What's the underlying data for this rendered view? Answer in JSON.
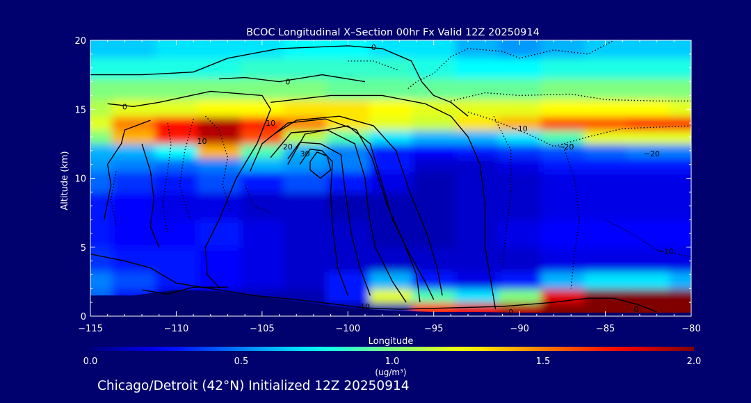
{
  "chart_data": {
    "type": "heatmap",
    "title": "BCOC Longitudinal X–Section 00hr  Fx Valid 12Z 20250914",
    "xlabel": "Longitude",
    "ylabel": "Altitude (km)",
    "xlim": [
      -115,
      -80
    ],
    "ylim": [
      0,
      20
    ],
    "x_ticks": [
      -115,
      -110,
      -105,
      -100,
      -95,
      -90,
      -85,
      -80
    ],
    "x_tick_labels": [
      "−115",
      "−110",
      "−105",
      "−100",
      "−95",
      "−90",
      "−85",
      "−80"
    ],
    "y_ticks": [
      0,
      5,
      10,
      15,
      20
    ],
    "y_tick_labels": [
      "0",
      "5",
      "10",
      "15",
      "20"
    ],
    "colorbar": {
      "min": 0.0,
      "max": 2.0,
      "ticks": [
        0.0,
        0.5,
        1.0,
        1.5,
        2.0
      ],
      "tick_labels": [
        "0.0",
        "0.5",
        "1.0",
        "1.5",
        "2.0"
      ],
      "units_label": "(ug/m³)",
      "colormap": "jet"
    },
    "footer": "Chicago/Detroit (42°N) Initialized 12Z 20250914",
    "grid": false,
    "field": {
      "lon": [
        -115,
        -112.5,
        -110,
        -107.5,
        -105,
        -102.5,
        -100,
        -97.5,
        -95,
        -92.5,
        -90,
        -87.5,
        -85,
        -82.5,
        -80
      ],
      "alt": [
        0.5,
        1.5,
        2.5,
        4,
        6,
        8,
        10,
        11,
        12,
        13,
        14,
        15,
        16.5,
        18,
        19.5
      ],
      "bcoc": [
        [
          0.05,
          0.05,
          0.05,
          0.05,
          0.05,
          0.05,
          0.05,
          0.1,
          1.7,
          1.8,
          1.9,
          2.0,
          2.0,
          2.0,
          2.0
        ],
        [
          0.45,
          0.3,
          0.15,
          0.1,
          0.1,
          0.1,
          0.3,
          1.2,
          0.9,
          0.7,
          1.0,
          1.8,
          2.0,
          2.0,
          2.0
        ],
        [
          0.5,
          0.4,
          0.3,
          0.25,
          0.2,
          0.15,
          0.3,
          0.6,
          0.3,
          0.2,
          0.3,
          0.6,
          0.7,
          0.7,
          0.6
        ],
        [
          0.35,
          0.3,
          0.3,
          0.25,
          0.2,
          0.15,
          0.15,
          0.15,
          0.15,
          0.15,
          0.15,
          0.2,
          0.2,
          0.2,
          0.2
        ],
        [
          0.3,
          0.25,
          0.25,
          0.3,
          0.2,
          0.15,
          0.15,
          0.1,
          0.1,
          0.15,
          0.2,
          0.25,
          0.25,
          0.25,
          0.25
        ],
        [
          0.3,
          0.25,
          0.2,
          0.2,
          0.15,
          0.15,
          0.1,
          0.1,
          0.1,
          0.15,
          0.15,
          0.2,
          0.2,
          0.2,
          0.2
        ],
        [
          0.45,
          0.35,
          0.3,
          0.4,
          0.3,
          0.4,
          0.3,
          0.2,
          0.1,
          0.15,
          0.15,
          0.2,
          0.2,
          0.2,
          0.2
        ],
        [
          0.55,
          0.5,
          0.45,
          0.5,
          0.6,
          0.55,
          0.5,
          0.3,
          0.15,
          0.15,
          0.2,
          0.3,
          0.3,
          0.3,
          0.3
        ],
        [
          0.6,
          0.6,
          0.75,
          1.4,
          0.9,
          0.6,
          0.5,
          0.3,
          0.25,
          0.3,
          0.35,
          0.4,
          0.45,
          0.5,
          0.5
        ],
        [
          1.0,
          1.4,
          1.7,
          1.9,
          1.6,
          1.1,
          0.9,
          0.7,
          0.6,
          0.6,
          0.7,
          0.9,
          1.2,
          1.2,
          1.2
        ],
        [
          1.2,
          1.5,
          1.75,
          1.9,
          1.7,
          1.5,
          1.3,
          1.2,
          1.15,
          1.3,
          1.4,
          1.6,
          1.6,
          1.7,
          1.7
        ],
        [
          1.1,
          1.2,
          1.2,
          1.25,
          1.25,
          1.3,
          1.3,
          1.25,
          1.2,
          1.2,
          1.2,
          1.25,
          1.25,
          1.25,
          1.2
        ],
        [
          1.0,
          1.0,
          1.0,
          1.0,
          1.0,
          1.0,
          0.95,
          0.95,
          0.95,
          0.95,
          0.95,
          1.0,
          1.0,
          1.0,
          1.0
        ],
        [
          0.8,
          0.8,
          0.8,
          0.8,
          0.85,
          0.85,
          0.85,
          0.85,
          0.8,
          0.75,
          0.75,
          0.8,
          0.8,
          0.8,
          0.8
        ],
        [
          0.65,
          0.65,
          0.7,
          0.7,
          0.7,
          0.75,
          0.75,
          0.7,
          0.7,
          0.6,
          0.55,
          0.6,
          0.65,
          0.65,
          0.65
        ]
      ]
    },
    "contour_labels": [
      {
        "text": "0",
        "lon": -98.5,
        "alt": 19.5
      },
      {
        "text": "0",
        "lon": -103.5,
        "alt": 17.0
      },
      {
        "text": "0",
        "lon": -113.0,
        "alt": 15.2
      },
      {
        "text": "10",
        "lon": -104.5,
        "alt": 14.0
      },
      {
        "text": "20",
        "lon": -103.5,
        "alt": 12.3
      },
      {
        "text": "30",
        "lon": -102.5,
        "alt": 11.8
      },
      {
        "text": "10",
        "lon": -108.5,
        "alt": 12.7
      },
      {
        "text": "−10",
        "lon": -90.0,
        "alt": 13.6
      },
      {
        "text": "−20",
        "lon": -87.3,
        "alt": 12.3
      },
      {
        "text": "−20",
        "lon": -82.3,
        "alt": 11.8
      },
      {
        "text": "−10",
        "lon": -81.5,
        "alt": 4.7
      },
      {
        "text": "10",
        "lon": -99.0,
        "alt": 0.7
      },
      {
        "text": "0",
        "lon": -90.5,
        "alt": 0.3
      },
      {
        "text": "0",
        "lon": -83.2,
        "alt": 0.5
      }
    ],
    "contours": {
      "solid": [
        [
          [
            -115,
            17.5
          ],
          [
            -112,
            17.5
          ],
          [
            -109,
            17.7
          ],
          [
            -107,
            18.7
          ],
          [
            -104,
            19.4
          ],
          [
            -100,
            19.6
          ],
          [
            -98,
            19.4
          ],
          [
            -96.3,
            18.5
          ],
          [
            -95.7,
            17
          ],
          [
            -95,
            16
          ],
          [
            -94,
            15.5
          ],
          [
            -93,
            14.5
          ]
        ],
        [
          [
            -107.5,
            17.2
          ],
          [
            -106,
            17.3
          ],
          [
            -104,
            17
          ],
          [
            -101.5,
            17.5
          ],
          [
            -99,
            17
          ]
        ],
        [
          [
            -114,
            15.4
          ],
          [
            -112.5,
            15.2
          ],
          [
            -111,
            15.5
          ],
          [
            -108,
            16.3
          ],
          [
            -105,
            16.0
          ],
          [
            -104.5,
            15.0
          ],
          [
            -105.3,
            12.5
          ],
          [
            -106.5,
            10.0
          ],
          [
            -107.5,
            7.0
          ],
          [
            -108.3,
            5.0
          ],
          [
            -108.2,
            3.0
          ],
          [
            -107.5,
            2.1
          ]
        ],
        [
          [
            -104.5,
            15.5
          ],
          [
            -101,
            16.0
          ],
          [
            -98,
            16.0
          ],
          [
            -95.5,
            15.4
          ],
          [
            -94,
            14.5
          ],
          [
            -93,
            13.0
          ],
          [
            -92.3,
            11.0
          ],
          [
            -92.0,
            8.0
          ],
          [
            -92.0,
            5.0
          ],
          [
            -91.6,
            2.0
          ],
          [
            -91.4,
            0.5
          ]
        ],
        [
          [
            -104.3,
            13.2
          ],
          [
            -103,
            14.2
          ],
          [
            -100.5,
            14.5
          ],
          [
            -98.5,
            13.8
          ],
          [
            -97.2,
            12.0
          ],
          [
            -96.4,
            9.0
          ],
          [
            -95.4,
            6.0
          ],
          [
            -94.8,
            3.5
          ],
          [
            -94.5,
            1.5
          ]
        ],
        [
          [
            -103.5,
            11.0
          ],
          [
            -102.5,
            13.2
          ],
          [
            -100,
            13.8
          ],
          [
            -98.7,
            12.5
          ],
          [
            -98.1,
            10.0
          ],
          [
            -97.4,
            7.0
          ],
          [
            -96.4,
            4.5
          ],
          [
            -95.5,
            2.5
          ],
          [
            -95.0,
            1.2
          ]
        ],
        [
          [
            -105.7,
            10.5
          ],
          [
            -105,
            12.5
          ],
          [
            -103.5,
            14
          ],
          [
            -101.3,
            14.3
          ],
          [
            -99.5,
            13.5
          ],
          [
            -98.6,
            11.5
          ],
          [
            -97.7,
            8.0
          ],
          [
            -96.8,
            5.5
          ],
          [
            -96,
            3.0
          ],
          [
            -95.8,
            1.0
          ]
        ],
        [
          [
            -104.5,
            11.5
          ],
          [
            -103.3,
            13.3
          ],
          [
            -101.2,
            13.5
          ],
          [
            -99.6,
            12.5
          ],
          [
            -99,
            10
          ],
          [
            -98.8,
            7.5
          ],
          [
            -98.4,
            5
          ],
          [
            -97.4,
            2.5
          ],
          [
            -96.6,
            1.0
          ]
        ],
        [
          [
            -103.5,
            11.4
          ],
          [
            -102.8,
            12.6
          ],
          [
            -101.6,
            12.5
          ],
          [
            -100.4,
            11.7
          ],
          [
            -100.2,
            9.5
          ],
          [
            -99.8,
            6.0
          ],
          [
            -99.3,
            3.5
          ],
          [
            -98.7,
            1.5
          ]
        ],
        [
          [
            -102.8,
            11.0
          ],
          [
            -102.2,
            12.1
          ],
          [
            -101.5,
            12.0
          ],
          [
            -100.9,
            11.2
          ],
          [
            -101.0,
            9.0
          ],
          [
            -100.9,
            6.5
          ],
          [
            -100.6,
            3.5
          ],
          [
            -100.0,
            1.5
          ]
        ],
        [
          [
            -102.2,
            11.2
          ],
          [
            -101.8,
            11.9
          ],
          [
            -101.2,
            11.6
          ],
          [
            -101.0,
            10.6
          ],
          [
            -101.6,
            10.0
          ],
          [
            -102.2,
            10.6
          ],
          [
            -102.2,
            11.2
          ]
        ],
        [
          [
            -115,
            4.5
          ],
          [
            -113,
            4.0
          ],
          [
            -111.5,
            3.5
          ],
          [
            -110,
            2.4
          ],
          [
            -108,
            2.0
          ],
          [
            -105.5,
            1.5
          ],
          [
            -103,
            1.2
          ],
          [
            -101,
            0.9
          ],
          [
            -99,
            0.6
          ],
          [
            -97,
            0.5
          ],
          [
            -94,
            0.6
          ],
          [
            -91,
            0.7
          ],
          [
            -88,
            1.0
          ],
          [
            -86,
            1.3
          ],
          [
            -84.5,
            1.3
          ],
          [
            -83,
            0.8
          ],
          [
            -82,
            0.3
          ]
        ],
        [
          [
            -112,
            1.9
          ],
          [
            -110.5,
            1.6
          ],
          [
            -109,
            2.1
          ],
          [
            -107,
            2.1
          ]
        ],
        [
          [
            -114.2,
            7.0
          ],
          [
            -113.8,
            9.5
          ],
          [
            -114.0,
            11.0
          ],
          [
            -113.2,
            12.5
          ],
          [
            -113.0,
            13.5
          ],
          [
            -111.5,
            14.2
          ]
        ],
        [
          [
            -112.0,
            12.5
          ],
          [
            -111.5,
            10.5
          ],
          [
            -111.3,
            8.5
          ],
          [
            -111.5,
            6.5
          ],
          [
            -111.0,
            5.0
          ]
        ]
      ],
      "dotted": [
        [
          [
            -96.5,
            16.5
          ],
          [
            -96.0,
            17.0
          ],
          [
            -95,
            17.6
          ],
          [
            -94,
            18.8
          ],
          [
            -93,
            19.4
          ],
          [
            -91,
            19.2
          ],
          [
            -90,
            18.7
          ],
          [
            -88,
            19.3
          ],
          [
            -86,
            19.0
          ],
          [
            -84.5,
            20.0
          ]
        ],
        [
          [
            -94,
            15.6
          ],
          [
            -92,
            16.2
          ],
          [
            -90,
            16.0
          ],
          [
            -87,
            16.1
          ],
          [
            -85,
            15.7
          ],
          [
            -82,
            15.6
          ],
          [
            -80,
            15.6
          ]
        ],
        [
          [
            -93,
            14.8
          ],
          [
            -91.5,
            14.2
          ],
          [
            -89.5,
            13.2
          ],
          [
            -88.0,
            12.3
          ],
          [
            -86.0,
            13.0
          ],
          [
            -84.0,
            13.6
          ],
          [
            -80,
            13.8
          ]
        ],
        [
          [
            -91.5,
            14.5
          ],
          [
            -90.5,
            12.0
          ],
          [
            -90.5,
            9.0
          ],
          [
            -90.8,
            6.0
          ],
          [
            -91.0,
            3.5
          ]
        ],
        [
          [
            -87.5,
            12.5
          ],
          [
            -86.8,
            10.0
          ],
          [
            -86.5,
            7.0
          ],
          [
            -86.8,
            4.5
          ],
          [
            -87.0,
            2.0
          ]
        ],
        [
          [
            -85.0,
            7.0
          ],
          [
            -83.5,
            6.0
          ],
          [
            -82.0,
            4.8
          ],
          [
            -80,
            4.3
          ]
        ],
        [
          [
            -110.5,
            14.0
          ],
          [
            -110.3,
            12.5
          ],
          [
            -110.5,
            10.5
          ],
          [
            -110.8,
            8.0
          ],
          [
            -110.5,
            6.0
          ]
        ],
        [
          [
            -108.3,
            14.5
          ],
          [
            -107.5,
            13.5
          ],
          [
            -107.0,
            11.5
          ],
          [
            -107.3,
            9.5
          ],
          [
            -106.8,
            7.5
          ]
        ],
        [
          [
            -109.0,
            14.3
          ],
          [
            -109.5,
            12.0
          ],
          [
            -109.8,
            9.5
          ],
          [
            -109.2,
            7.0
          ]
        ],
        [
          [
            -113.5,
            10.5
          ],
          [
            -113.8,
            8.5
          ],
          [
            -113.5,
            6.5
          ]
        ],
        [
          [
            -106.0,
            9.5
          ],
          [
            -105.5,
            8.0
          ],
          [
            -104.5,
            7.5
          ]
        ],
        [
          [
            -100.0,
            18.5
          ],
          [
            -98.5,
            18.5
          ],
          [
            -97.0,
            17.8
          ]
        ]
      ]
    }
  }
}
